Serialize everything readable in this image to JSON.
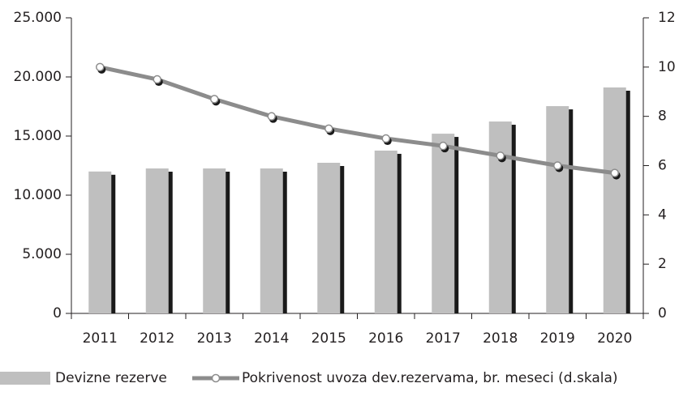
{
  "chart_data": {
    "type": "bar-line",
    "categories": [
      "2011",
      "2012",
      "2013",
      "2014",
      "2015",
      "2016",
      "2017",
      "2018",
      "2019",
      "2020"
    ],
    "series": [
      {
        "name": "Devizne rezerve",
        "type": "bar",
        "color": "#bfbfbf",
        "values": [
          12000,
          12260,
          12260,
          12260,
          12740,
          13770,
          15200,
          16230,
          17530,
          19110
        ]
      },
      {
        "name": "Pokrivenost uvoza dev.rezervama, br. meseci (d.skala)",
        "type": "line",
        "axis": "y2",
        "color": "#8c8c8c",
        "values": [
          10.0,
          9.5,
          8.7,
          8.0,
          7.5,
          7.1,
          6.8,
          6.4,
          6.0,
          5.7
        ]
      }
    ],
    "ylim": [
      0,
      25000
    ],
    "yticks": [
      0,
      {
        "value": 5000,
        "label": "5.000"
      },
      {
        "value": 10000,
        "label": "10.000"
      },
      {
        "value": 15000,
        "label": "15.000"
      },
      {
        "value": 20000,
        "label": "20.000"
      },
      {
        "value": 25000,
        "label": "25.000"
      }
    ],
    "y2lim": [
      0,
      12
    ],
    "y2ticks": [
      0,
      2,
      4,
      6,
      8,
      10,
      12
    ],
    "legend": "bottom"
  }
}
